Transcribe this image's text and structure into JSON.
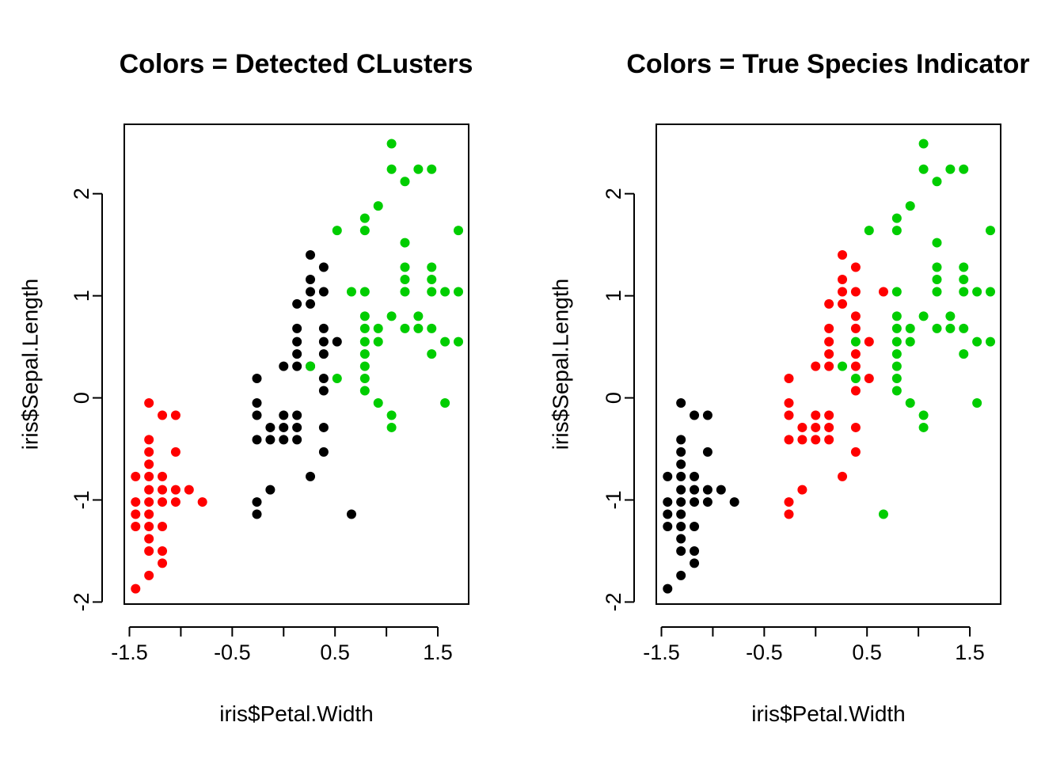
{
  "colors": {
    "red": "#FF0000",
    "black": "#000000",
    "green": "#00CD00"
  },
  "chart_data": [
    {
      "type": "scatter",
      "title": "Colors = Detected CLusters",
      "xlabel": "iris$Petal.Width",
      "ylabel": "iris$Sepal.Length",
      "xticks": [
        "-1.5",
        "-0.5",
        "0.5",
        "1.5"
      ],
      "yticks": [
        "-2",
        "-1",
        "0",
        "1",
        "2"
      ],
      "xlim": [
        -1.55,
        1.8
      ],
      "ylim": [
        -2.02,
        2.68
      ],
      "grid": false,
      "legend": "none",
      "series": [
        {
          "color": "red",
          "points": [
            [
              -1.44,
              -0.77
            ],
            [
              -1.44,
              -1.02
            ],
            [
              -1.44,
              -1.14
            ],
            [
              -1.44,
              -1.26
            ],
            [
              -1.44,
              -1.87
            ],
            [
              -1.31,
              -0.05
            ],
            [
              -1.31,
              -0.41
            ],
            [
              -1.31,
              -0.53
            ],
            [
              -1.31,
              -0.65
            ],
            [
              -1.31,
              -0.77
            ],
            [
              -1.31,
              -0.9
            ],
            [
              -1.31,
              -1.02
            ],
            [
              -1.31,
              -1.14
            ],
            [
              -1.31,
              -1.26
            ],
            [
              -1.31,
              -1.38
            ],
            [
              -1.31,
              -1.5
            ],
            [
              -1.31,
              -1.74
            ],
            [
              -1.18,
              -0.17
            ],
            [
              -1.18,
              -0.77
            ],
            [
              -1.18,
              -0.9
            ],
            [
              -1.18,
              -1.02
            ],
            [
              -1.18,
              -1.26
            ],
            [
              -1.18,
              -1.5
            ],
            [
              -1.18,
              -1.62
            ],
            [
              -1.05,
              -0.17
            ],
            [
              -1.05,
              -0.53
            ],
            [
              -1.05,
              -0.9
            ],
            [
              -1.05,
              -1.02
            ],
            [
              -0.92,
              -0.9
            ],
            [
              -0.79,
              -1.02
            ]
          ]
        },
        {
          "color": "black",
          "points": [
            [
              -0.26,
              0.19
            ],
            [
              -0.26,
              -0.05
            ],
            [
              -0.26,
              -0.17
            ],
            [
              -0.26,
              -0.41
            ],
            [
              -0.26,
              -1.02
            ],
            [
              -0.26,
              -1.14
            ],
            [
              -0.13,
              -0.29
            ],
            [
              -0.13,
              -0.41
            ],
            [
              -0.13,
              -0.9
            ],
            [
              0.0,
              0.31
            ],
            [
              0.0,
              -0.17
            ],
            [
              0.0,
              -0.29
            ],
            [
              0.0,
              -0.41
            ],
            [
              0.13,
              0.92
            ],
            [
              0.13,
              0.68
            ],
            [
              0.13,
              0.55
            ],
            [
              0.13,
              0.43
            ],
            [
              0.13,
              0.31
            ],
            [
              0.13,
              -0.17
            ],
            [
              0.13,
              -0.29
            ],
            [
              0.13,
              -0.41
            ],
            [
              0.26,
              1.4
            ],
            [
              0.26,
              1.16
            ],
            [
              0.26,
              1.04
            ],
            [
              0.26,
              0.92
            ],
            [
              0.26,
              0.31
            ],
            [
              0.26,
              -0.77
            ],
            [
              0.39,
              1.28
            ],
            [
              0.39,
              1.04
            ],
            [
              0.39,
              0.68
            ],
            [
              0.39,
              0.55
            ],
            [
              0.39,
              0.43
            ],
            [
              0.39,
              0.19
            ],
            [
              0.39,
              0.07
            ],
            [
              0.39,
              -0.29
            ],
            [
              0.39,
              -0.53
            ],
            [
              0.52,
              0.55
            ],
            [
              0.66,
              -1.14
            ]
          ]
        },
        {
          "color": "green",
          "points": [
            [
              0.52,
              1.64
            ],
            [
              0.52,
              0.19
            ],
            [
              0.66,
              1.04
            ],
            [
              0.79,
              1.76
            ],
            [
              0.79,
              1.64
            ],
            [
              0.79,
              1.04
            ],
            [
              0.79,
              0.8
            ],
            [
              0.79,
              0.68
            ],
            [
              0.79,
              0.55
            ],
            [
              0.79,
              0.43
            ],
            [
              0.79,
              0.31
            ],
            [
              0.79,
              0.19
            ],
            [
              0.79,
              0.07
            ],
            [
              0.92,
              1.88
            ],
            [
              0.92,
              0.68
            ],
            [
              0.92,
              0.55
            ],
            [
              0.92,
              -0.05
            ],
            [
              1.05,
              2.49
            ],
            [
              1.05,
              2.24
            ],
            [
              1.05,
              0.8
            ],
            [
              1.05,
              -0.17
            ],
            [
              1.05,
              -0.29
            ],
            [
              1.18,
              2.12
            ],
            [
              1.18,
              1.52
            ],
            [
              1.18,
              1.28
            ],
            [
              1.18,
              1.16
            ],
            [
              1.18,
              1.04
            ],
            [
              1.18,
              0.68
            ],
            [
              1.31,
              2.24
            ],
            [
              1.31,
              0.8
            ],
            [
              1.31,
              0.68
            ],
            [
              1.44,
              2.24
            ],
            [
              1.44,
              1.28
            ],
            [
              1.44,
              1.16
            ],
            [
              1.44,
              1.04
            ],
            [
              1.44,
              0.68
            ],
            [
              1.44,
              0.43
            ],
            [
              1.57,
              1.04
            ],
            [
              1.57,
              0.55
            ],
            [
              1.57,
              -0.05
            ],
            [
              1.7,
              1.64
            ],
            [
              1.7,
              1.04
            ],
            [
              1.7,
              0.55
            ]
          ]
        },
        {
          "color": "green",
          "points": [
            [
              0.26,
              0.31
            ]
          ]
        }
      ]
    },
    {
      "type": "scatter",
      "title": "Colors = True Species Indicator",
      "xlabel": "iris$Petal.Width",
      "ylabel": "iris$Sepal.Length",
      "xticks": [
        "-1.5",
        "-0.5",
        "0.5",
        "1.5"
      ],
      "yticks": [
        "-2",
        "-1",
        "0",
        "1",
        "2"
      ],
      "xlim": [
        -1.55,
        1.8
      ],
      "ylim": [
        -2.02,
        2.68
      ],
      "grid": false,
      "legend": "none",
      "series": [
        {
          "color": "black",
          "points": [
            [
              -1.44,
              -0.77
            ],
            [
              -1.44,
              -1.02
            ],
            [
              -1.44,
              -1.14
            ],
            [
              -1.44,
              -1.26
            ],
            [
              -1.44,
              -1.87
            ],
            [
              -1.31,
              -0.05
            ],
            [
              -1.31,
              -0.41
            ],
            [
              -1.31,
              -0.53
            ],
            [
              -1.31,
              -0.65
            ],
            [
              -1.31,
              -0.77
            ],
            [
              -1.31,
              -0.9
            ],
            [
              -1.31,
              -1.02
            ],
            [
              -1.31,
              -1.14
            ],
            [
              -1.31,
              -1.26
            ],
            [
              -1.31,
              -1.38
            ],
            [
              -1.31,
              -1.5
            ],
            [
              -1.31,
              -1.74
            ],
            [
              -1.18,
              -0.17
            ],
            [
              -1.18,
              -0.77
            ],
            [
              -1.18,
              -0.9
            ],
            [
              -1.18,
              -1.02
            ],
            [
              -1.18,
              -1.26
            ],
            [
              -1.18,
              -1.5
            ],
            [
              -1.18,
              -1.62
            ],
            [
              -1.05,
              -0.17
            ],
            [
              -1.05,
              -0.53
            ],
            [
              -1.05,
              -0.9
            ],
            [
              -1.05,
              -1.02
            ],
            [
              -0.92,
              -0.9
            ],
            [
              -0.79,
              -1.02
            ]
          ]
        },
        {
          "color": "red",
          "points": [
            [
              -0.26,
              0.19
            ],
            [
              -0.26,
              -0.05
            ],
            [
              -0.26,
              -0.17
            ],
            [
              -0.26,
              -0.41
            ],
            [
              -0.26,
              -1.02
            ],
            [
              -0.26,
              -1.14
            ],
            [
              -0.13,
              -0.29
            ],
            [
              -0.13,
              -0.41
            ],
            [
              -0.13,
              -0.9
            ],
            [
              0.0,
              0.31
            ],
            [
              0.0,
              -0.17
            ],
            [
              0.0,
              -0.29
            ],
            [
              0.0,
              -0.41
            ],
            [
              0.13,
              0.92
            ],
            [
              0.13,
              0.68
            ],
            [
              0.13,
              0.55
            ],
            [
              0.13,
              0.43
            ],
            [
              0.13,
              0.31
            ],
            [
              0.13,
              -0.17
            ],
            [
              0.13,
              -0.29
            ],
            [
              0.13,
              -0.41
            ],
            [
              0.26,
              1.4
            ],
            [
              0.26,
              1.16
            ],
            [
              0.26,
              1.04
            ],
            [
              0.26,
              0.92
            ],
            [
              0.26,
              -0.77
            ],
            [
              0.39,
              1.28
            ],
            [
              0.39,
              1.04
            ],
            [
              0.39,
              0.8
            ],
            [
              0.39,
              0.68
            ],
            [
              0.39,
              0.43
            ],
            [
              0.39,
              0.31
            ],
            [
              0.39,
              0.07
            ],
            [
              0.39,
              -0.29
            ],
            [
              0.39,
              -0.53
            ],
            [
              0.52,
              0.55
            ],
            [
              0.52,
              0.19
            ],
            [
              0.66,
              1.04
            ]
          ]
        },
        {
          "color": "green",
          "points": [
            [
              0.26,
              0.31
            ],
            [
              0.39,
              0.55
            ],
            [
              0.39,
              0.19
            ],
            [
              0.66,
              -1.14
            ],
            [
              0.79,
              1.76
            ],
            [
              0.79,
              1.64
            ],
            [
              0.79,
              1.04
            ],
            [
              0.79,
              0.8
            ],
            [
              0.79,
              0.68
            ],
            [
              0.79,
              0.55
            ],
            [
              0.79,
              0.43
            ],
            [
              0.79,
              0.31
            ],
            [
              0.79,
              0.19
            ],
            [
              0.79,
              0.07
            ],
            [
              0.92,
              1.88
            ],
            [
              0.92,
              0.68
            ],
            [
              0.92,
              0.55
            ],
            [
              0.92,
              -0.05
            ],
            [
              1.05,
              2.49
            ],
            [
              1.05,
              2.24
            ],
            [
              1.05,
              0.8
            ],
            [
              1.05,
              -0.17
            ],
            [
              1.05,
              -0.29
            ],
            [
              1.18,
              2.12
            ],
            [
              1.18,
              1.52
            ],
            [
              1.18,
              1.28
            ],
            [
              1.18,
              1.16
            ],
            [
              1.18,
              1.04
            ],
            [
              1.18,
              0.68
            ],
            [
              1.31,
              2.24
            ],
            [
              1.31,
              0.8
            ],
            [
              1.31,
              0.68
            ],
            [
              1.44,
              2.24
            ],
            [
              1.44,
              1.28
            ],
            [
              1.44,
              1.16
            ],
            [
              1.44,
              1.04
            ],
            [
              1.44,
              0.68
            ],
            [
              1.44,
              0.43
            ],
            [
              1.57,
              1.04
            ],
            [
              1.57,
              0.55
            ],
            [
              1.57,
              -0.05
            ],
            [
              1.7,
              1.64
            ],
            [
              1.7,
              1.04
            ],
            [
              1.7,
              0.55
            ],
            [
              0.52,
              1.64
            ]
          ]
        }
      ]
    }
  ]
}
